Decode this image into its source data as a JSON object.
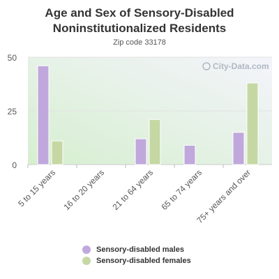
{
  "chart_data": {
    "type": "bar",
    "title_line1": "Age and Sex of Sensory-Disabled",
    "title_line2": "Noninstitutionalized Residents",
    "subtitle": "Zip code 33178",
    "watermark": "City-Data.com",
    "categories": [
      "5 to 15 years",
      "16 to 20 years",
      "21 to 64 years",
      "65 to 74 years",
      "75+ years and over"
    ],
    "series": [
      {
        "name": "Sensory-disabled males",
        "color": "#c0a8dc",
        "values": [
          46,
          0,
          12,
          9,
          15
        ]
      },
      {
        "name": "Sensory-disabled females",
        "color": "#c5d8a4",
        "values": [
          11,
          0,
          21,
          0,
          38
        ]
      }
    ],
    "y_ticks": [
      0,
      25,
      50
    ],
    "ylim": [
      0,
      50
    ],
    "grid": true,
    "legend_position": "bottom"
  }
}
